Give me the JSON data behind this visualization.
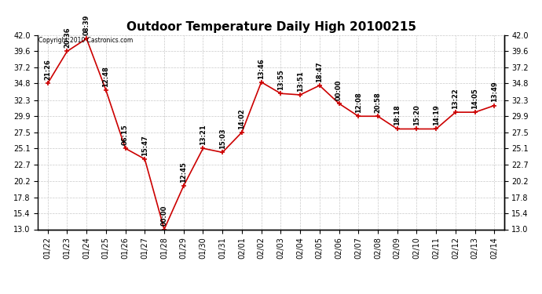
{
  "title": "Outdoor Temperature Daily High 20100215",
  "copyright": "Copyright 2010 Castronics.com",
  "background_color": "#ffffff",
  "line_color": "#cc0000",
  "marker_color": "#cc0000",
  "grid_color": "#bbbbbb",
  "dates": [
    "01/22",
    "01/23",
    "01/24",
    "01/25",
    "01/26",
    "01/27",
    "01/28",
    "01/29",
    "01/30",
    "01/31",
    "02/01",
    "02/02",
    "02/03",
    "02/04",
    "02/05",
    "02/06",
    "02/07",
    "02/08",
    "02/09",
    "02/10",
    "02/11",
    "02/12",
    "02/13",
    "02/14"
  ],
  "values": [
    34.8,
    39.6,
    41.5,
    33.8,
    25.1,
    23.5,
    13.0,
    19.5,
    25.1,
    24.5,
    27.5,
    35.0,
    33.3,
    33.1,
    34.5,
    31.8,
    29.9,
    29.9,
    28.0,
    28.0,
    28.0,
    30.5,
    30.5,
    31.5
  ],
  "labels": [
    "21:26",
    "20:36",
    "08:39",
    "12:48",
    "06:15",
    "15:47",
    "00:00",
    "12:45",
    "13:21",
    "15:03",
    "14:02",
    "13:46",
    "13:55",
    "13:51",
    "18:47",
    "00:00",
    "12:08",
    "20:58",
    "18:18",
    "15:20",
    "14:19",
    "13:22",
    "14:05",
    "13:49"
  ],
  "ylim": [
    13.0,
    42.0
  ],
  "yticks": [
    13.0,
    15.4,
    17.8,
    20.2,
    22.7,
    25.1,
    27.5,
    29.9,
    32.3,
    34.8,
    37.2,
    39.6,
    42.0
  ],
  "title_fontsize": 11,
  "label_fontsize": 6,
  "tick_fontsize": 7,
  "copyright_fontsize": 5.5
}
